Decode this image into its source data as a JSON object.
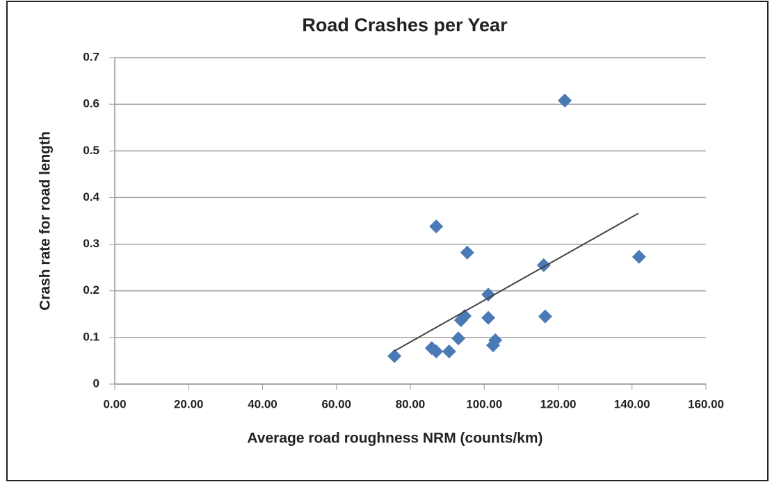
{
  "chart_data": {
    "type": "scatter",
    "title": "Road Crashes per Year",
    "x_label": "Average road roughness NRM (counts/km)",
    "y_label": "Crash rate for road length",
    "series": [
      {
        "name": "Crash rate",
        "color": "#4a7ab5",
        "x": [
          75.7,
          85.8,
          87.0,
          90.5,
          93.0,
          93.7,
          94.7,
          87.0,
          95.4,
          101.1,
          101.1,
          102.4,
          103.0,
          116.1,
          116.5,
          121.8,
          141.9
        ],
        "values": [
          0.06,
          0.077,
          0.07,
          0.07,
          0.098,
          0.137,
          0.146,
          0.338,
          0.282,
          0.192,
          0.142,
          0.083,
          0.094,
          0.255,
          0.145,
          0.608,
          0.273
        ]
      }
    ],
    "trendline": {
      "color": "#444444",
      "x": [
        75.7,
        141.7
      ],
      "values": [
        0.071,
        0.366
      ]
    },
    "xlim": [
      0,
      160
    ],
    "xticks": [
      {
        "value": 0,
        "label": "0.00"
      },
      {
        "value": 20,
        "label": "20.00"
      },
      {
        "value": 40,
        "label": "40.00"
      },
      {
        "value": 60,
        "label": "60.00"
      },
      {
        "value": 80,
        "label": "80.00"
      },
      {
        "value": 100,
        "label": "100.00"
      },
      {
        "value": 120,
        "label": "120.00"
      },
      {
        "value": 140,
        "label": "140.00"
      },
      {
        "value": 160,
        "label": "160.00"
      }
    ],
    "ylim": [
      0,
      0.7
    ],
    "yticks": [
      0,
      0.1,
      0.2,
      0.3,
      0.4,
      0.5,
      0.6,
      0.7
    ],
    "grid": true
  }
}
